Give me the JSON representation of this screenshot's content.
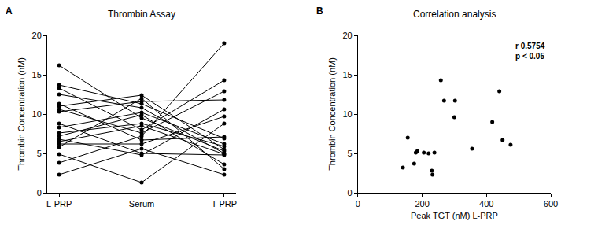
{
  "chart_data": [
    {
      "type": "line",
      "panel": "A",
      "title": "Thrombin Assay",
      "categories": [
        "L-PRP",
        "Serum",
        "T-PRP"
      ],
      "ylabel": "Thrombin Concentration (nM)",
      "ylim": [
        0,
        20
      ],
      "yticks": [
        0,
        5,
        10,
        15,
        20
      ],
      "color": "#000000",
      "marker": "circle",
      "line_style": "solid",
      "grid": false,
      "series": [
        {
          "values": [
            16.2,
            9.5,
            5.3
          ]
        },
        {
          "values": [
            13.7,
            11.3,
            6.9
          ]
        },
        {
          "values": [
            13.3,
            8.0,
            14.3
          ]
        },
        {
          "values": [
            12.5,
            10.8,
            5.0
          ]
        },
        {
          "values": [
            11.3,
            6.7,
            7.1
          ]
        },
        {
          "values": [
            11.0,
            12.4,
            5.5
          ]
        },
        {
          "values": [
            10.6,
            7.6,
            12.9
          ]
        },
        {
          "values": [
            10.3,
            11.6,
            11.8
          ]
        },
        {
          "values": [
            8.8,
            5.0,
            4.8
          ]
        },
        {
          "values": [
            8.3,
            10.2,
            6.2
          ]
        },
        {
          "values": [
            7.6,
            8.8,
            5.9
          ]
        },
        {
          "values": [
            7.2,
            9.9,
            3.6
          ]
        },
        {
          "values": [
            6.8,
            4.8,
            10.6
          ]
        },
        {
          "values": [
            6.5,
            8.5,
            4.9
          ]
        },
        {
          "values": [
            6.2,
            6.2,
            9.7
          ]
        },
        {
          "values": [
            5.8,
            12.0,
            3.0
          ]
        },
        {
          "values": [
            4.9,
            1.3,
            8.8
          ]
        },
        {
          "values": [
            3.8,
            7.2,
            19.0
          ]
        },
        {
          "values": [
            2.3,
            5.6,
            2.3
          ]
        }
      ]
    },
    {
      "type": "scatter",
      "panel": "B",
      "title": "Correlation analysis",
      "xlabel": "Peak TGT (nM) L-PRP",
      "ylabel": "Thrombin Concentration (nM)",
      "x": [
        140,
        155,
        175,
        180,
        185,
        205,
        220,
        230,
        232,
        238,
        258,
        268,
        300,
        302,
        355,
        418,
        440,
        450,
        475
      ],
      "values": [
        3.2,
        7.0,
        3.7,
        5.1,
        5.3,
        5.1,
        5.0,
        2.8,
        2.3,
        5.1,
        14.3,
        11.7,
        9.6,
        11.7,
        5.6,
        9.0,
        12.9,
        6.7,
        6.1
      ],
      "xlim": [
        0,
        600
      ],
      "xticks": [
        0,
        200,
        400,
        600
      ],
      "ylim": [
        0,
        20
      ],
      "yticks": [
        0,
        5,
        10,
        15,
        20
      ],
      "color": "#000000",
      "marker": "circle",
      "grid": false,
      "annotations": [
        "r 0.5754",
        "p < 0.05"
      ]
    }
  ]
}
